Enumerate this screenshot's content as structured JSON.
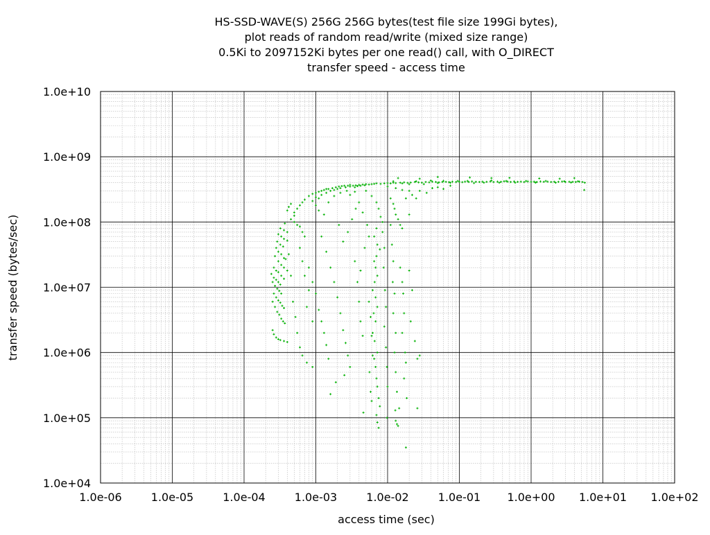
{
  "chart_data": {
    "type": "scatter",
    "title_lines": [
      "HS-SSD-WAVE(S) 256G 256G bytes(test file size 199Gi bytes),",
      "plot reads of random read/write (mixed size range)",
      "0.5Ki to 2097152Ki bytes per one read() call, with O_DIRECT",
      "transfer speed - access time"
    ],
    "xlabel": "access time (sec)",
    "ylabel": "transfer speed (bytes/sec)",
    "x_scale": "log",
    "y_scale": "log",
    "xlim": [
      1e-06,
      100
    ],
    "ylim": [
      10000,
      10000000000
    ],
    "x_tick_labels": [
      "1.0e-06",
      "1.0e-05",
      "1.0e-04",
      "1.0e-03",
      "1.0e-02",
      "1.0e-01",
      "1.0e+00",
      "1.0e+01",
      "1.0e+02"
    ],
    "y_tick_labels": [
      "1.0e+04",
      "1.0e+05",
      "1.0e+06",
      "1.0e+07",
      "1.0e+08",
      "1.0e+09",
      "1.0e+10"
    ],
    "grid": true,
    "point_color": "#00b000",
    "points": [
      [
        0.00025,
        2200000
      ],
      [
        0.00026,
        1900000
      ],
      [
        0.00028,
        1700000
      ],
      [
        0.0003,
        1600000
      ],
      [
        0.00032,
        1550000
      ],
      [
        0.00036,
        1500000
      ],
      [
        0.0004,
        1450000
      ],
      [
        0.00025,
        6000000
      ],
      [
        0.00027,
        5000000
      ],
      [
        0.00029,
        4200000
      ],
      [
        0.00031,
        3800000
      ],
      [
        0.00033,
        3300000
      ],
      [
        0.00035,
        3000000
      ],
      [
        0.00037,
        2800000
      ],
      [
        0.00026,
        8000000
      ],
      [
        0.00028,
        7000000
      ],
      [
        0.0003,
        6300000
      ],
      [
        0.00032,
        5800000
      ],
      [
        0.00034,
        5200000
      ],
      [
        0.00036,
        4800000
      ],
      [
        0.00025,
        12000000
      ],
      [
        0.00027,
        10500000
      ],
      [
        0.00029,
        9500000
      ],
      [
        0.00031,
        8800000
      ],
      [
        0.00033,
        8000000
      ],
      [
        0.00024,
        16000000
      ],
      [
        0.00026,
        14000000
      ],
      [
        0.00028,
        13000000
      ],
      [
        0.0003,
        12000000
      ],
      [
        0.00032,
        11000000
      ],
      [
        0.00026,
        20000000
      ],
      [
        0.00028,
        18000000
      ],
      [
        0.0003,
        17000000
      ],
      [
        0.00033,
        15000000
      ],
      [
        0.00036,
        13500000
      ],
      [
        0.00027,
        30000000
      ],
      [
        0.0003,
        25000000
      ],
      [
        0.00033,
        22000000
      ],
      [
        0.00036,
        20000000
      ],
      [
        0.0004,
        18000000
      ],
      [
        0.00028,
        40000000
      ],
      [
        0.0003,
        35000000
      ],
      [
        0.00033,
        32000000
      ],
      [
        0.00036,
        28000000
      ],
      [
        0.00038,
        27000000
      ],
      [
        0.00029,
        50000000
      ],
      [
        0.00032,
        45000000
      ],
      [
        0.00035,
        42000000
      ],
      [
        0.0003,
        65000000
      ],
      [
        0.00033,
        60000000
      ],
      [
        0.00036,
        55000000
      ],
      [
        0.0004,
        52000000
      ],
      [
        0.00032,
        80000000
      ],
      [
        0.00036,
        75000000
      ],
      [
        0.0004,
        70000000
      ],
      [
        0.00037,
        95000000
      ],
      [
        0.00042,
        32000000
      ],
      [
        0.00045,
        15000000
      ],
      [
        0.00048,
        6000000
      ],
      [
        0.00052,
        3500000
      ],
      [
        0.00055,
        2000000
      ],
      [
        0.0006,
        1200000
      ],
      [
        0.00065,
        900000
      ],
      [
        0.00075,
        700000
      ],
      [
        0.0009,
        600000
      ],
      [
        0.00045,
        110000000
      ],
      [
        0.0005,
        140000000
      ],
      [
        0.0005,
        125000000
      ],
      [
        0.00055,
        160000000
      ],
      [
        0.0006,
        180000000
      ],
      [
        0.00065,
        200000000
      ],
      [
        0.0007,
        220000000
      ],
      [
        0.0004,
        150000000
      ],
      [
        0.00042,
        170000000
      ],
      [
        0.00045,
        190000000
      ],
      [
        0.0005,
        100000000
      ],
      [
        0.00055,
        90000000
      ],
      [
        0.0006,
        85000000
      ],
      [
        0.00065,
        70000000
      ],
      [
        0.0007,
        60000000
      ],
      [
        0.0006,
        40000000
      ],
      [
        0.00065,
        25000000
      ],
      [
        0.0007,
        15000000
      ],
      [
        0.0008,
        9000000
      ],
      [
        0.00075,
        5000000
      ],
      [
        0.0009,
        3000000
      ],
      [
        0.0008,
        250000000
      ],
      [
        0.0009,
        270000000
      ],
      [
        0.001,
        280000000
      ],
      [
        0.0011,
        290000000
      ],
      [
        0.0012,
        300000000
      ],
      [
        0.0013,
        310000000
      ],
      [
        0.0014,
        320000000
      ],
      [
        0.0015,
        320000000
      ],
      [
        0.0017,
        330000000
      ],
      [
        0.0019,
        340000000
      ],
      [
        0.0021,
        350000000
      ],
      [
        0.0023,
        355000000
      ],
      [
        0.0025,
        360000000
      ],
      [
        0.0028,
        360000000
      ],
      [
        0.003,
        370000000
      ],
      [
        0.0033,
        360000000
      ],
      [
        0.0036,
        365000000
      ],
      [
        0.004,
        370000000
      ],
      [
        0.0045,
        375000000
      ],
      [
        0.005,
        380000000
      ],
      [
        0.0055,
        375000000
      ],
      [
        0.006,
        380000000
      ],
      [
        0.0065,
        385000000
      ],
      [
        0.007,
        390000000
      ],
      [
        0.008,
        385000000
      ],
      [
        0.009,
        390000000
      ],
      [
        0.001,
        240000000
      ],
      [
        0.0011,
        230000000
      ],
      [
        0.0012,
        260000000
      ],
      [
        0.0014,
        280000000
      ],
      [
        0.0016,
        300000000
      ],
      [
        0.0018,
        310000000
      ],
      [
        0.002,
        320000000
      ],
      [
        0.0022,
        330000000
      ],
      [
        0.0026,
        340000000
      ],
      [
        0.003,
        350000000
      ],
      [
        0.0035,
        340000000
      ],
      [
        0.0038,
        355000000
      ],
      [
        0.0042,
        360000000
      ],
      [
        0.0048,
        365000000
      ],
      [
        0.0009,
        210000000
      ],
      [
        0.001,
        180000000
      ],
      [
        0.0011,
        150000000
      ],
      [
        0.0013,
        130000000
      ],
      [
        0.0015,
        200000000
      ],
      [
        0.0018,
        250000000
      ],
      [
        0.0022,
        280000000
      ],
      [
        0.0027,
        300000000
      ],
      [
        0.003,
        260000000
      ],
      [
        0.0035,
        290000000
      ],
      [
        0.01,
        395000000
      ],
      [
        0.011,
        390000000
      ],
      [
        0.012,
        400000000
      ],
      [
        0.013,
        395000000
      ],
      [
        0.015,
        400000000
      ],
      [
        0.017,
        405000000
      ],
      [
        0.019,
        398000000
      ],
      [
        0.021,
        402000000
      ],
      [
        0.024,
        410000000
      ],
      [
        0.027,
        405000000
      ],
      [
        0.03,
        400000000
      ],
      [
        0.034,
        410000000
      ],
      [
        0.038,
        405000000
      ],
      [
        0.042,
        415000000
      ],
      [
        0.047,
        410000000
      ],
      [
        0.052,
        405000000
      ],
      [
        0.058,
        410000000
      ],
      [
        0.065,
        412000000
      ],
      [
        0.072,
        408000000
      ],
      [
        0.08,
        415000000
      ],
      [
        0.09,
        410000000
      ],
      [
        0.1,
        412000000
      ],
      [
        0.11,
        408000000
      ],
      [
        0.12,
        415000000
      ],
      [
        0.135,
        410000000
      ],
      [
        0.15,
        418000000
      ],
      [
        0.17,
        412000000
      ],
      [
        0.19,
        410000000
      ],
      [
        0.21,
        415000000
      ],
      [
        0.24,
        412000000
      ],
      [
        0.27,
        418000000
      ],
      [
        0.3,
        410000000
      ],
      [
        0.34,
        415000000
      ],
      [
        0.38,
        412000000
      ],
      [
        0.42,
        420000000
      ],
      [
        0.47,
        415000000
      ],
      [
        0.52,
        410000000
      ],
      [
        0.58,
        418000000
      ],
      [
        0.65,
        412000000
      ],
      [
        0.72,
        415000000
      ],
      [
        0.8,
        410000000
      ],
      [
        0.9,
        418000000
      ],
      [
        1.0,
        412000000
      ],
      [
        1.1,
        415000000
      ],
      [
        1.2,
        410000000
      ],
      [
        1.35,
        418000000
      ],
      [
        1.5,
        412000000
      ],
      [
        1.7,
        415000000
      ],
      [
        1.9,
        410000000
      ],
      [
        2.1,
        414000000
      ],
      [
        2.4,
        412000000
      ],
      [
        2.7,
        416000000
      ],
      [
        3.0,
        410000000
      ],
      [
        3.4,
        414000000
      ],
      [
        3.8,
        412000000
      ],
      [
        4.2,
        410000000
      ],
      [
        4.7,
        415000000
      ],
      [
        5.2,
        410000000
      ],
      [
        5.6,
        400000000
      ],
      [
        0.012,
        420000000
      ],
      [
        0.016,
        390000000
      ],
      [
        0.02,
        380000000
      ],
      [
        0.025,
        420000000
      ],
      [
        0.032,
        380000000
      ],
      [
        0.04,
        430000000
      ],
      [
        0.05,
        395000000
      ],
      [
        0.06,
        425000000
      ],
      [
        0.075,
        400000000
      ],
      [
        0.095,
        425000000
      ],
      [
        0.13,
        425000000
      ],
      [
        0.16,
        395000000
      ],
      [
        0.22,
        400000000
      ],
      [
        0.28,
        430000000
      ],
      [
        0.36,
        400000000
      ],
      [
        0.45,
        425000000
      ],
      [
        0.6,
        400000000
      ],
      [
        0.85,
        425000000
      ],
      [
        1.15,
        400000000
      ],
      [
        1.6,
        425000000
      ],
      [
        2.2,
        400000000
      ],
      [
        2.9,
        422000000
      ],
      [
        3.6,
        402000000
      ],
      [
        4.5,
        420000000
      ],
      [
        0.014,
        470000000
      ],
      [
        0.028,
        460000000
      ],
      [
        0.05,
        490000000
      ],
      [
        0.14,
        480000000
      ],
      [
        0.28,
        470000000
      ],
      [
        0.5,
        475000000
      ],
      [
        1.3,
        465000000
      ],
      [
        2.5,
        460000000
      ],
      [
        4.0,
        470000000
      ],
      [
        0.01,
        350000000
      ],
      [
        0.013,
        330000000
      ],
      [
        0.016,
        310000000
      ],
      [
        0.02,
        300000000
      ],
      [
        0.022,
        260000000
      ],
      [
        0.025,
        230000000
      ],
      [
        0.028,
        300000000
      ],
      [
        0.035,
        280000000
      ],
      [
        0.042,
        330000000
      ],
      [
        0.05,
        340000000
      ],
      [
        0.06,
        320000000
      ],
      [
        0.075,
        360000000
      ],
      [
        5.5,
        310000000
      ],
      [
        0.011,
        230000000
      ],
      [
        0.012,
        190000000
      ],
      [
        0.0125,
        160000000
      ],
      [
        0.013,
        130000000
      ],
      [
        0.014,
        110000000
      ],
      [
        0.015,
        90000000
      ],
      [
        0.016,
        80000000
      ],
      [
        0.018,
        230000000
      ],
      [
        0.02,
        130000000
      ],
      [
        0.005,
        300000000
      ],
      [
        0.006,
        250000000
      ],
      [
        0.007,
        200000000
      ],
      [
        0.0075,
        160000000
      ],
      [
        0.008,
        120000000
      ],
      [
        0.0085,
        100000000
      ],
      [
        0.007,
        80000000
      ],
      [
        0.0065,
        60000000
      ],
      [
        0.0072,
        45000000
      ],
      [
        0.0078,
        38000000
      ],
      [
        0.007,
        30000000
      ],
      [
        0.0065,
        25000000
      ],
      [
        0.0068,
        20000000
      ],
      [
        0.0072,
        15000000
      ],
      [
        0.0066,
        12000000
      ],
      [
        0.0062,
        9000000
      ],
      [
        0.0068,
        7000000
      ],
      [
        0.0072,
        5000000
      ],
      [
        0.0064,
        4000000
      ],
      [
        0.0068,
        3000000
      ],
      [
        0.0062,
        2000000
      ],
      [
        0.0066,
        1500000
      ],
      [
        0.0072,
        1000000
      ],
      [
        0.0065,
        800000
      ],
      [
        0.0068,
        600000
      ],
      [
        0.007,
        400000
      ],
      [
        0.0072,
        300000
      ],
      [
        0.0075,
        200000
      ],
      [
        0.0078,
        150000
      ],
      [
        0.007,
        110000
      ],
      [
        0.0072,
        85000
      ],
      [
        0.0075,
        70000
      ],
      [
        0.0055,
        6000000
      ],
      [
        0.0058,
        3500000
      ],
      [
        0.006,
        1800000
      ],
      [
        0.0062,
        900000
      ],
      [
        0.0056,
        500000
      ],
      [
        0.0058,
        250000
      ],
      [
        0.006,
        180000
      ],
      [
        0.0085,
        70000000
      ],
      [
        0.009,
        40000000
      ],
      [
        0.0088,
        20000000
      ],
      [
        0.0092,
        9000000
      ],
      [
        0.0095,
        5000000
      ],
      [
        0.009,
        2500000
      ],
      [
        0.0095,
        1200000
      ],
      [
        0.0098,
        600000
      ],
      [
        0.01,
        300000
      ],
      [
        0.0098,
        100000
      ],
      [
        0.011,
        90000000
      ],
      [
        0.0115,
        45000000
      ],
      [
        0.012,
        25000000
      ],
      [
        0.0118,
        12000000
      ],
      [
        0.0125,
        8000000
      ],
      [
        0.012,
        4000000
      ],
      [
        0.013,
        2000000
      ],
      [
        0.0125,
        1000000
      ],
      [
        0.013,
        500000
      ],
      [
        0.0135,
        250000
      ],
      [
        0.0128,
        130000
      ],
      [
        0.013,
        90000
      ],
      [
        0.0135,
        80000
      ],
      [
        0.014,
        75000
      ],
      [
        0.0145,
        140000
      ],
      [
        0.015,
        20000000
      ],
      [
        0.016,
        12000000
      ],
      [
        0.0165,
        8000000
      ],
      [
        0.017,
        4000000
      ],
      [
        0.016,
        2000000
      ],
      [
        0.0175,
        1000000
      ],
      [
        0.018,
        700000
      ],
      [
        0.017,
        400000
      ],
      [
        0.0185,
        200000
      ],
      [
        0.018,
        35000
      ],
      [
        0.02,
        18000000
      ],
      [
        0.022,
        9000000
      ],
      [
        0.021,
        3000000
      ],
      [
        0.024,
        1500000
      ],
      [
        0.026,
        800000
      ],
      [
        0.028,
        900000
      ],
      [
        0.026,
        140000
      ],
      [
        0.0012,
        60000000
      ],
      [
        0.0014,
        35000000
      ],
      [
        0.0016,
        20000000
      ],
      [
        0.0018,
        12000000
      ],
      [
        0.002,
        7000000
      ],
      [
        0.0022,
        4000000
      ],
      [
        0.0024,
        2200000
      ],
      [
        0.0026,
        1400000
      ],
      [
        0.0028,
        900000
      ],
      [
        0.003,
        600000
      ],
      [
        0.0025,
        450000
      ],
      [
        0.0019,
        350000
      ],
      [
        0.0016,
        230000
      ],
      [
        0.0008,
        20000000
      ],
      [
        0.0009,
        12000000
      ],
      [
        0.001,
        8000000
      ],
      [
        0.0011,
        4500000
      ],
      [
        0.0012,
        3000000
      ],
      [
        0.0013,
        2000000
      ],
      [
        0.0014,
        1300000
      ],
      [
        0.0015,
        800000
      ],
      [
        0.0035,
        25000000
      ],
      [
        0.0038,
        12000000
      ],
      [
        0.004,
        6000000
      ],
      [
        0.0042,
        3000000
      ],
      [
        0.0045,
        1800000
      ],
      [
        0.0046,
        120000
      ],
      [
        0.0021,
        90000000
      ],
      [
        0.0024,
        50000000
      ],
      [
        0.0028,
        70000000
      ],
      [
        0.0032,
        110000000
      ],
      [
        0.0036,
        160000000
      ],
      [
        0.004,
        200000000
      ],
      [
        0.0045,
        140000000
      ],
      [
        0.0052,
        90000000
      ],
      [
        0.0055,
        60000000
      ],
      [
        0.0048,
        40000000
      ],
      [
        0.0042,
        18000000
      ]
    ]
  }
}
